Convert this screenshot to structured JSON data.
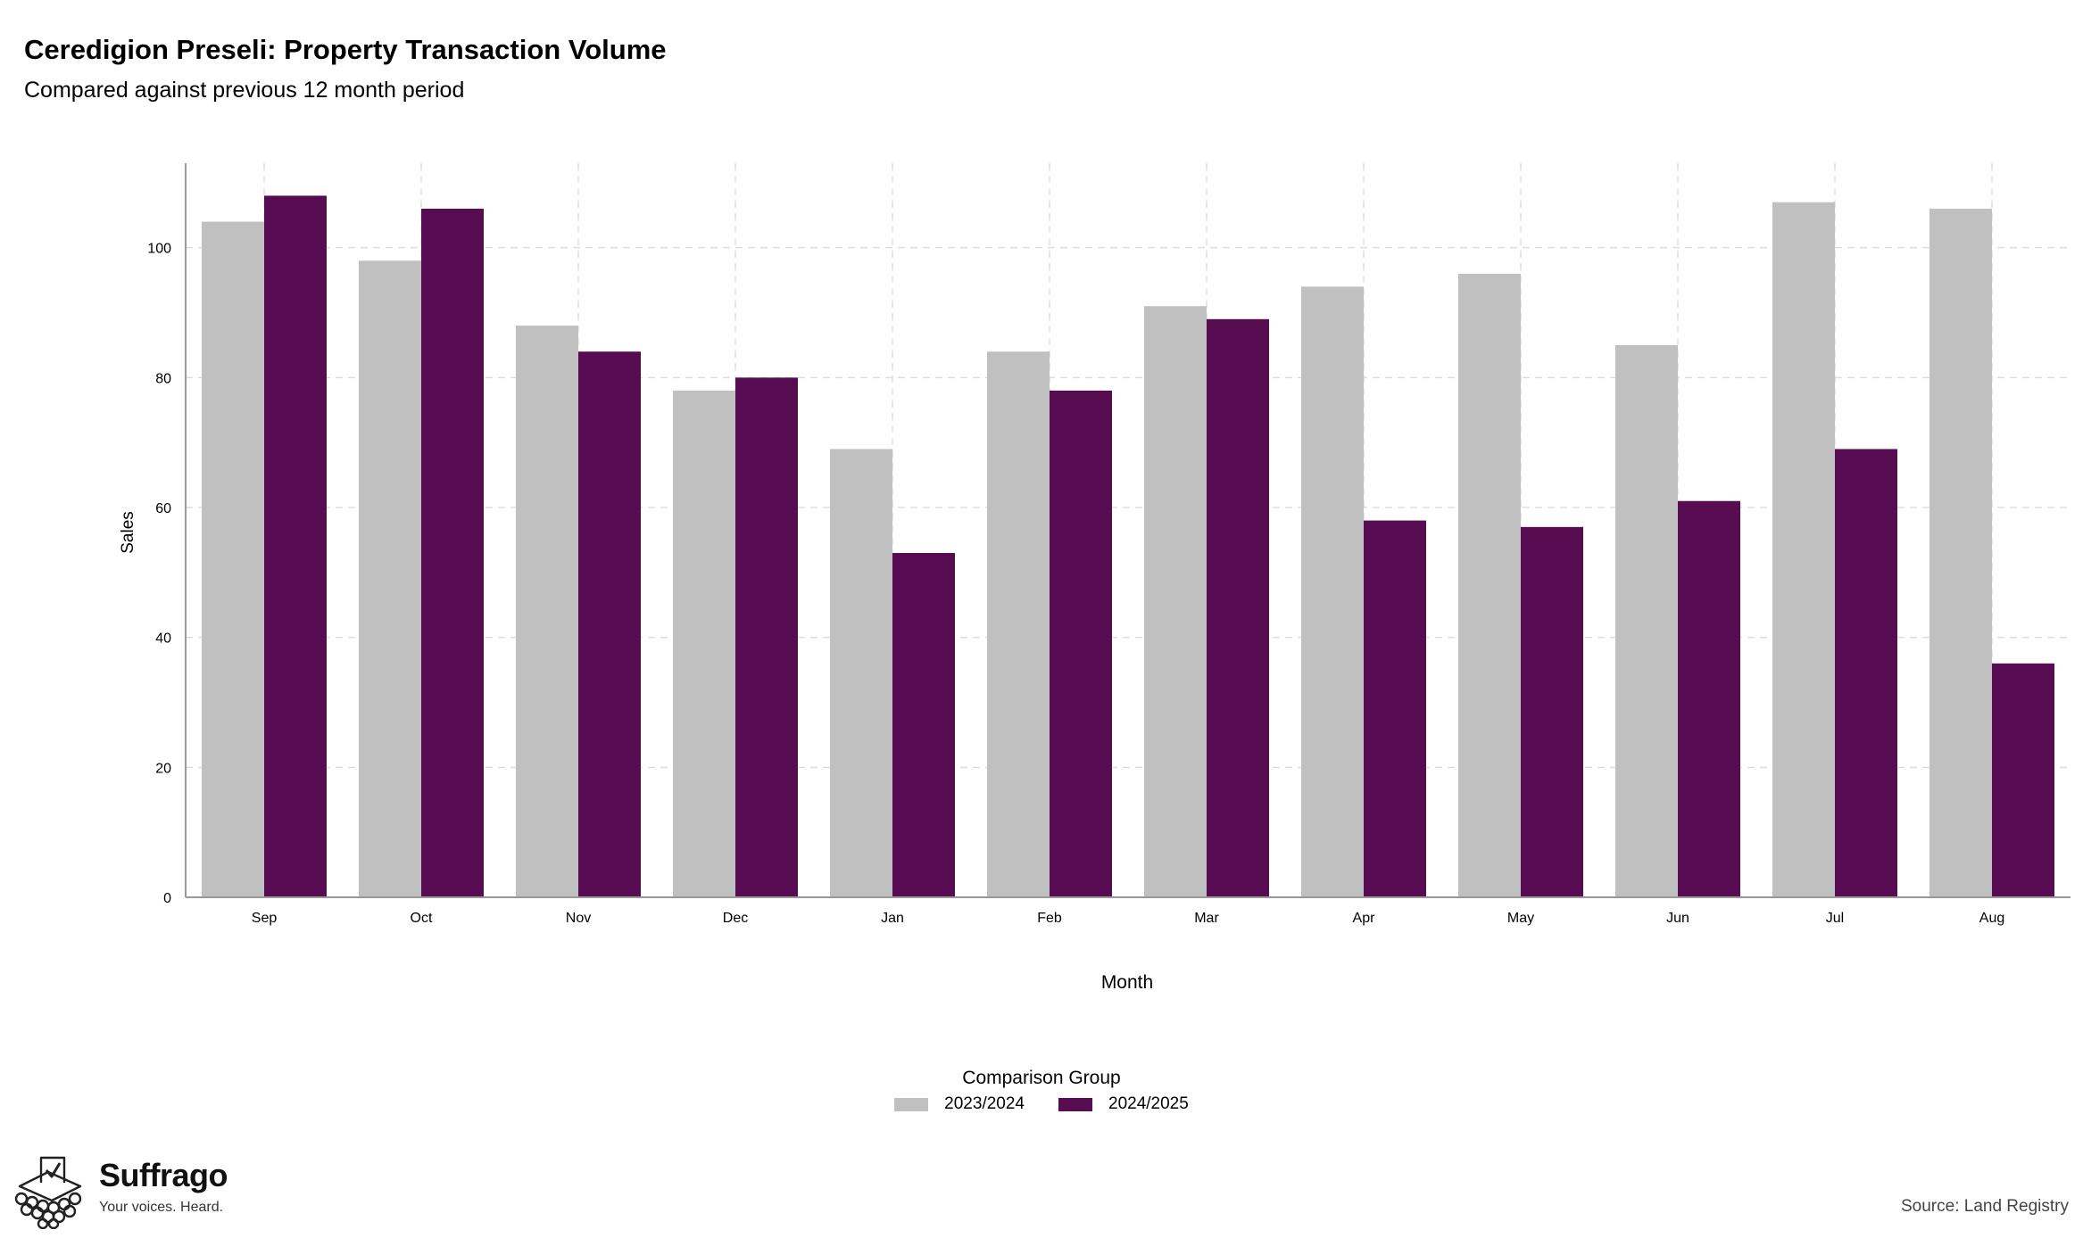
{
  "chart_data": {
    "type": "bar",
    "title": "Ceredigion Preseli: Property Transaction Volume",
    "subtitle": "Compared against previous 12 month period",
    "xlabel": "Month",
    "ylabel": "Sales",
    "categories": [
      "Sep",
      "Oct",
      "Nov",
      "Dec",
      "Jan",
      "Feb",
      "Mar",
      "Apr",
      "May",
      "Jun",
      "Jul",
      "Aug"
    ],
    "series": [
      {
        "name": "2023/2024",
        "color": "#c0c0c0",
        "values": [
          104,
          98,
          88,
          78,
          69,
          84,
          91,
          94,
          96,
          85,
          107,
          106
        ]
      },
      {
        "name": "2024/2025",
        "color": "#570c52",
        "values": [
          108,
          106,
          84,
          80,
          53,
          78,
          89,
          58,
          57,
          61,
          69,
          36
        ]
      }
    ],
    "ylim": [
      0,
      113
    ],
    "yticks": [
      0,
      20,
      40,
      60,
      80,
      100
    ],
    "grid": true,
    "legend_title": "Comparison Group",
    "legend_position": "bottom"
  },
  "branding": {
    "name": "Suffrago",
    "tagline": "Your voices. Heard.",
    "logo_icon": "ballot-box-crowd-icon"
  },
  "footer": {
    "source": "Source: Land Registry"
  }
}
